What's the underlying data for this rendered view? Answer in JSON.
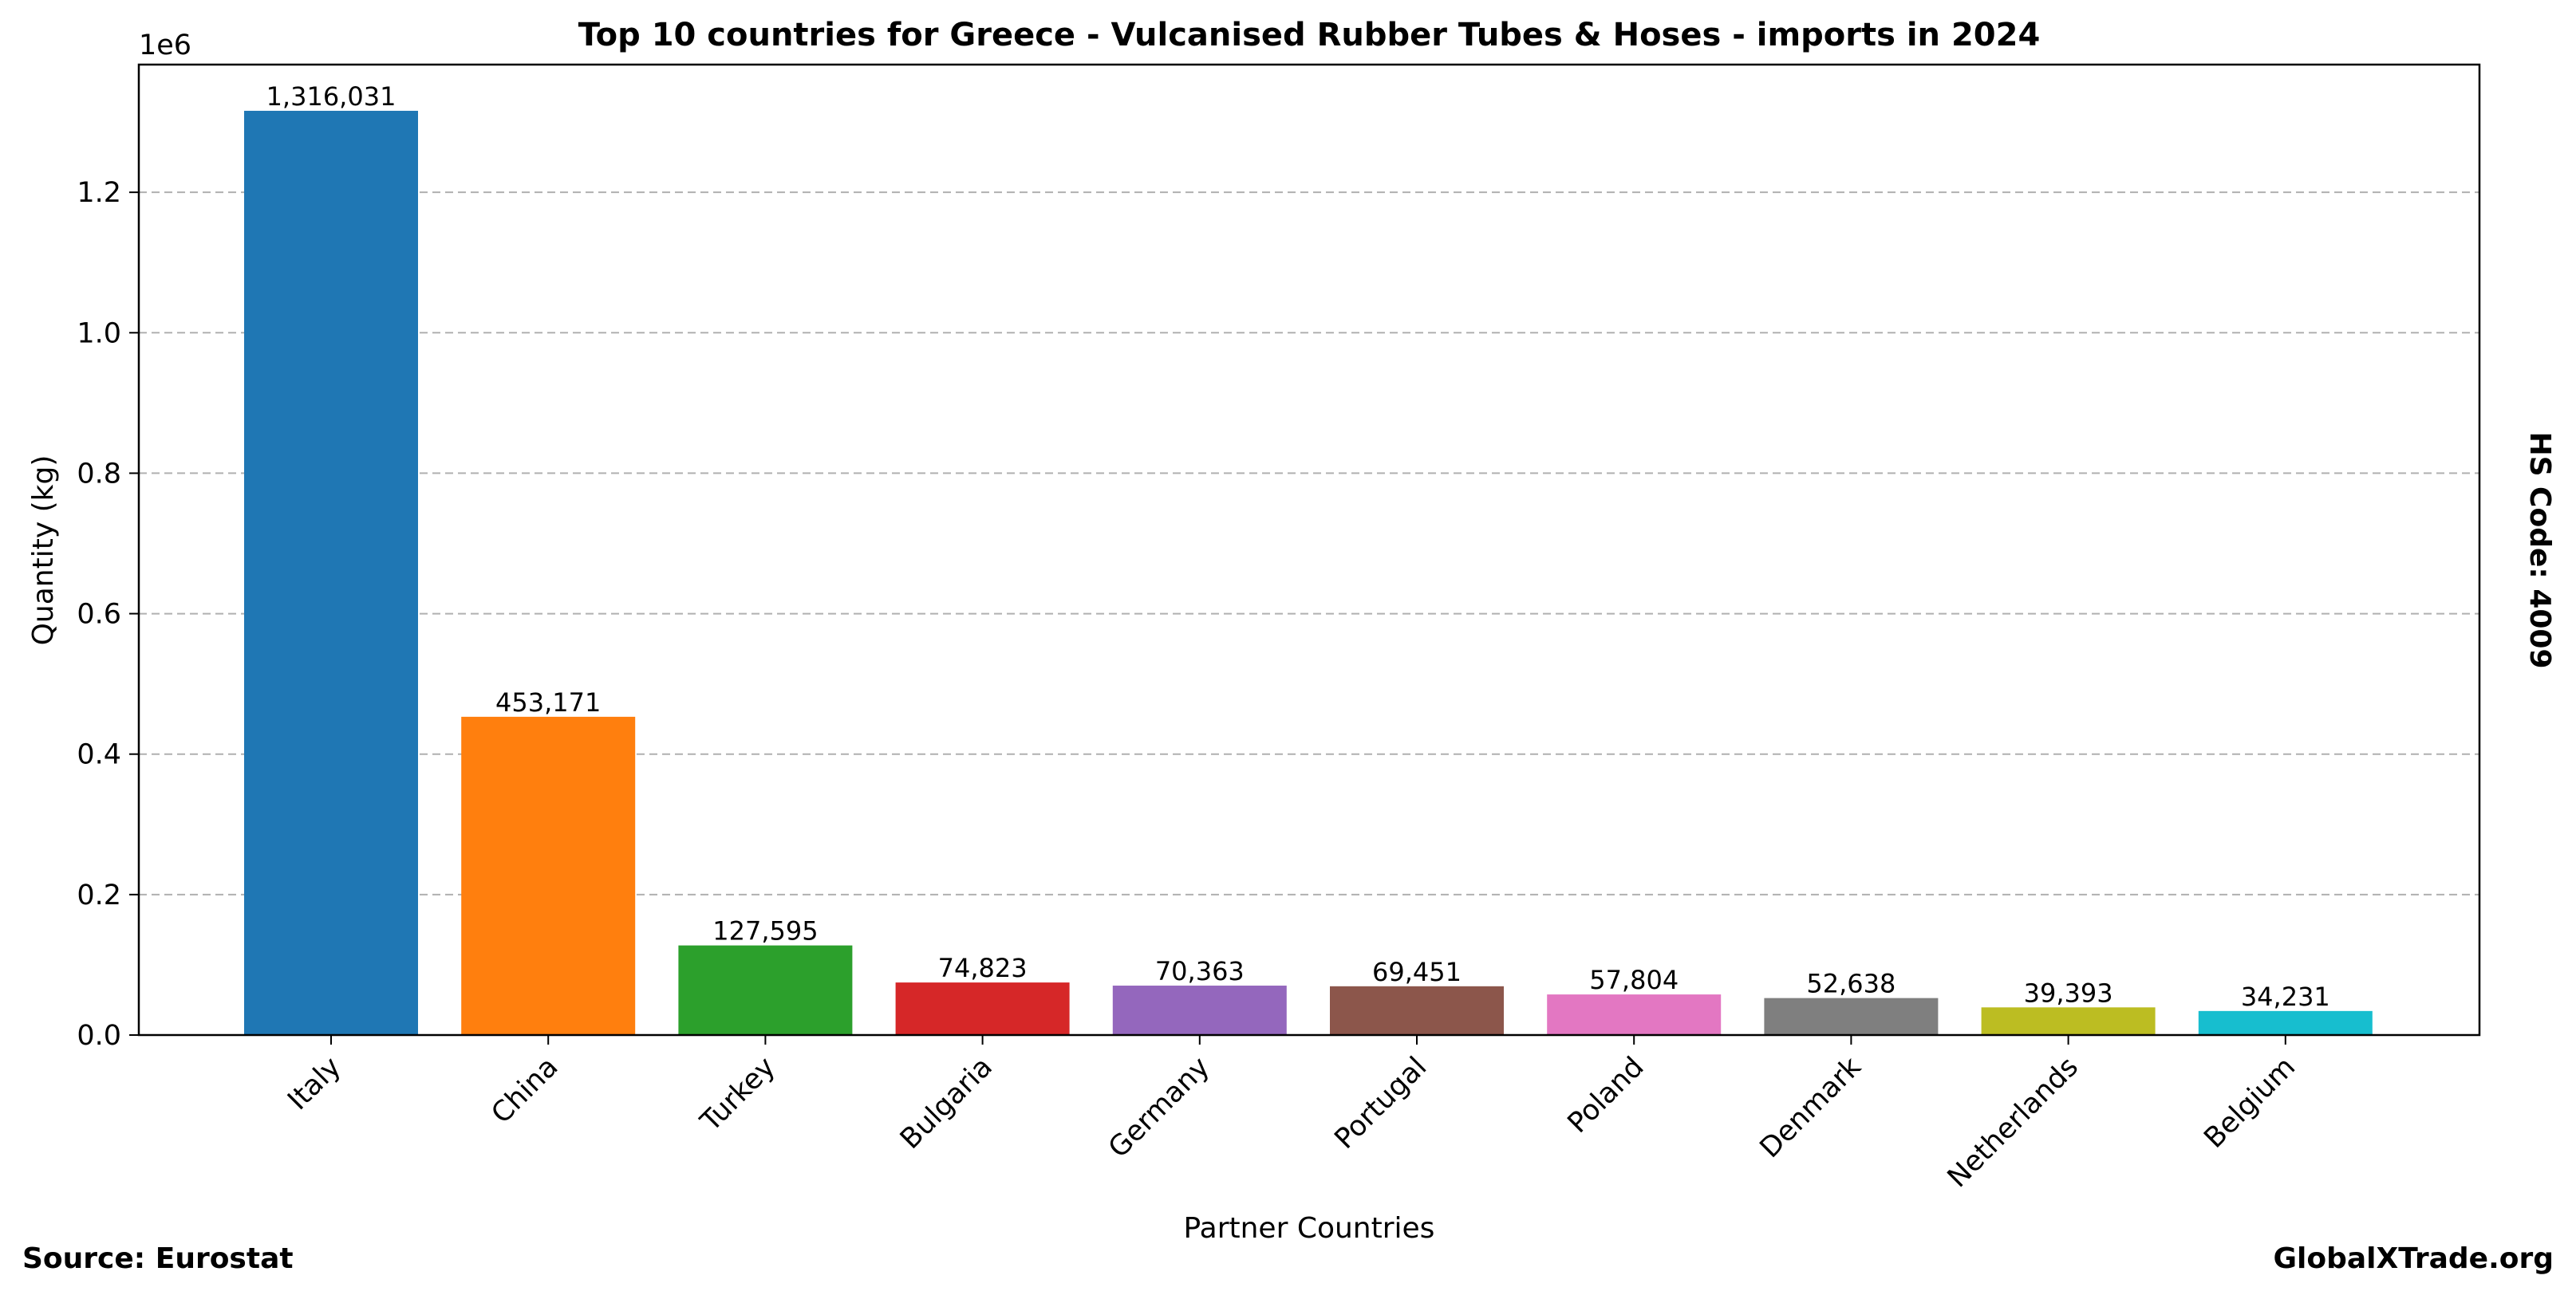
{
  "chart_data": {
    "type": "bar",
    "title": "Top 10 countries for Greece - Vulcanised Rubber Tubes & Hoses - imports in 2024",
    "xlabel": "Partner Countries",
    "ylabel": "Quantity (kg)",
    "y_offset_label": "1e6",
    "categories": [
      "Italy",
      "China",
      "Turkey",
      "Bulgaria",
      "Germany",
      "Portugal",
      "Poland",
      "Denmark",
      "Netherlands",
      "Belgium"
    ],
    "values": [
      1316031,
      453171,
      127595,
      74823,
      70363,
      69451,
      57804,
      52638,
      39393,
      34231
    ],
    "value_labels": [
      "1,316,031",
      "453,171",
      "127,595",
      "74,823",
      "70,363",
      "69,451",
      "57,804",
      "52,638",
      "39,393",
      "34,231"
    ],
    "colors": [
      "#1f77b4",
      "#ff7f0e",
      "#2ca02c",
      "#d62728",
      "#9467bd",
      "#8c564b",
      "#e377c2",
      "#7f7f7f",
      "#bcbd22",
      "#17becf"
    ],
    "ylim": [
      0,
      1381833
    ],
    "yticks": [
      0,
      200000,
      400000,
      600000,
      800000,
      1000000,
      1200000
    ],
    "ytick_labels": [
      "0.0",
      "0.2",
      "0.4",
      "0.6",
      "0.8",
      "1.0",
      "1.2"
    ],
    "grid": "y-dashed",
    "legend": "none"
  },
  "annotations": {
    "side_text": "HS Code: 4009",
    "source": "Source: Eurostat",
    "site": "GlobalXTrade.org"
  }
}
